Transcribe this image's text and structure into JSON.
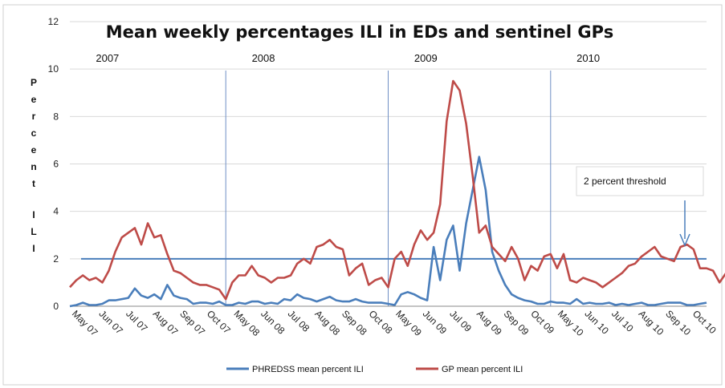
{
  "chart_data": {
    "type": "line",
    "title": "Mean weekly percentages ILI in EDs and sentinel GPs",
    "ylabel": "Percent ILI",
    "ylim": [
      0,
      12
    ],
    "yticks": [
      "0",
      "2",
      "4",
      "6",
      "8",
      "10",
      "12"
    ],
    "xlabels": [
      "May 07",
      "Jun 07",
      "Jul 07",
      "Aug 07",
      "Sep 07",
      "Oct 07",
      "May 08",
      "Jun 08",
      "Jul 08",
      "Aug 08",
      "Sep 08",
      "Oct 08",
      "May 09",
      "Jun 09",
      "Jul 09",
      "Aug 09",
      "Sep 09",
      "Oct 09",
      "May 10",
      "Jun 10",
      "Jul 10",
      "Aug 10",
      "Sep 10",
      "Oct 10"
    ],
    "years": [
      {
        "label": "2007",
        "x": 4
      },
      {
        "label": "2008",
        "x": 28
      },
      {
        "label": "2009",
        "x": 53
      },
      {
        "label": "2010",
        "x": 78
      }
    ],
    "season_separators": [
      24,
      49,
      74
    ],
    "threshold": {
      "value": 2,
      "label": "2 percent threshold"
    },
    "series": [
      {
        "name": "PHREDSS mean percent ILI",
        "color": "#4a7ebb",
        "values": [
          0.0,
          0.05,
          0.15,
          0.05,
          0.05,
          0.1,
          0.25,
          0.25,
          0.3,
          0.35,
          0.75,
          0.45,
          0.35,
          0.5,
          0.3,
          0.9,
          0.45,
          0.35,
          0.3,
          0.1,
          0.15,
          0.15,
          0.1,
          0.2,
          0.05,
          0.05,
          0.15,
          0.1,
          0.2,
          0.2,
          0.1,
          0.15,
          0.1,
          0.3,
          0.25,
          0.5,
          0.35,
          0.3,
          0.2,
          0.3,
          0.4,
          0.25,
          0.2,
          0.2,
          0.3,
          0.2,
          0.15,
          0.15,
          0.15,
          0.1,
          0.05,
          0.5,
          0.6,
          0.5,
          0.35,
          0.25,
          2.5,
          1.1,
          2.8,
          3.4,
          1.5,
          3.5,
          4.9,
          6.3,
          4.9,
          2.3,
          1.5,
          0.9,
          0.5,
          0.35,
          0.25,
          0.2,
          0.1,
          0.1,
          0.2,
          0.15,
          0.15,
          0.1,
          0.3,
          0.1,
          0.15,
          0.1,
          0.1,
          0.15,
          0.05,
          0.1,
          0.05,
          0.1,
          0.15,
          0.05,
          0.05,
          0.1,
          0.15,
          0.15,
          0.15,
          0.05,
          0.05,
          0.1,
          0.15
        ]
      },
      {
        "name": "GP mean percent ILI",
        "color": "#be4b48",
        "values": [
          0.8,
          1.1,
          1.3,
          1.1,
          1.2,
          1.0,
          1.5,
          2.3,
          2.9,
          3.1,
          3.3,
          2.6,
          3.5,
          2.9,
          3.0,
          2.2,
          1.5,
          1.4,
          1.2,
          1.0,
          0.9,
          0.9,
          0.8,
          0.7,
          0.3,
          1.0,
          1.3,
          1.3,
          1.7,
          1.3,
          1.2,
          1.0,
          1.2,
          1.2,
          1.3,
          1.8,
          2.0,
          1.8,
          2.5,
          2.6,
          2.8,
          2.5,
          2.4,
          1.3,
          1.6,
          1.8,
          0.9,
          1.1,
          1.2,
          0.8,
          2.0,
          2.3,
          1.7,
          2.6,
          3.2,
          2.8,
          3.1,
          4.3,
          7.8,
          9.5,
          9.1,
          7.7,
          5.5,
          3.1,
          3.4,
          2.5,
          2.2,
          1.9,
          2.5,
          2.0,
          1.1,
          1.7,
          1.5,
          2.1,
          2.2,
          1.6,
          2.2,
          1.1,
          1.0,
          1.2,
          1.1,
          1.0,
          0.8,
          1.0,
          1.2,
          1.4,
          1.7,
          1.8,
          2.1,
          2.3,
          2.5,
          2.1,
          2.0,
          1.9,
          2.5,
          2.6,
          2.4,
          1.6,
          1.6,
          1.5,
          1.0,
          1.4,
          1.1
        ]
      }
    ]
  }
}
